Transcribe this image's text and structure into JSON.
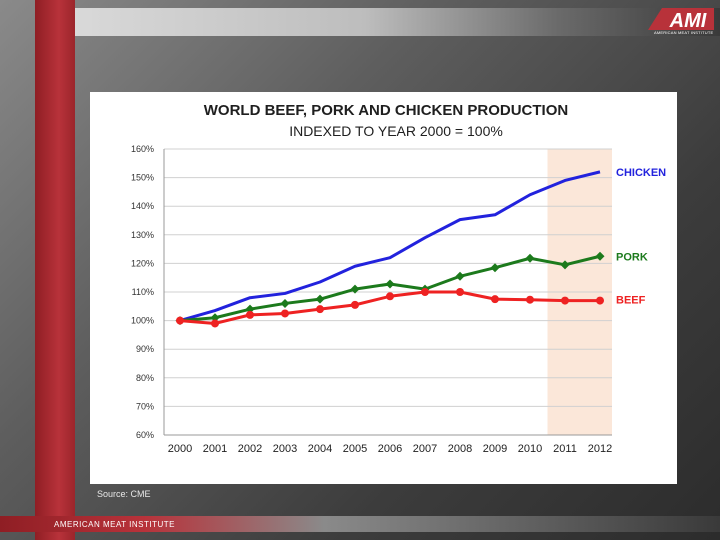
{
  "branding": {
    "logo_mark": "AMI",
    "logo_subtext": "AMERICAN MEAT INSTITUTE",
    "footer": "AMERICAN MEAT INSTITUTE",
    "source": "Source: CME"
  },
  "colors": {
    "chicken": "#2222dd",
    "pork": "#1c7a1c",
    "beef": "#ee2222",
    "highlight": "#fbe7d9",
    "brand_red": "#b8323a"
  },
  "chart_data": {
    "type": "line",
    "title": "WORLD BEEF, PORK AND CHICKEN PRODUCTION",
    "subtitle": "INDEXED TO YEAR 2000 = 100%",
    "x": [
      "2000",
      "2001",
      "2002",
      "2003",
      "2004",
      "2005",
      "2006",
      "2007",
      "2008",
      "2009",
      "2010",
      "2011",
      "2012"
    ],
    "ylim": [
      60,
      160
    ],
    "yticks": [
      "60%",
      "70%",
      "80%",
      "90%",
      "100%",
      "110%",
      "120%",
      "130%",
      "140%",
      "150%",
      "160%"
    ],
    "highlight_range": [
      "2010",
      "2012"
    ],
    "series": [
      {
        "name": "CHICKEN",
        "marker": "none",
        "values": [
          100,
          103.5,
          108,
          109.5,
          113.5,
          119,
          122,
          129,
          135.3,
          137,
          144,
          149,
          152
        ]
      },
      {
        "name": "PORK",
        "marker": "diamond",
        "values": [
          100,
          101,
          104,
          106,
          107.5,
          111,
          112.8,
          111,
          115.5,
          118.5,
          121.8,
          119.5,
          122.5
        ]
      },
      {
        "name": "BEEF",
        "marker": "circle",
        "values": [
          100,
          99,
          102,
          102.5,
          104,
          105.5,
          108.5,
          110,
          110,
          107.5,
          107.3,
          107,
          107
        ]
      }
    ]
  }
}
